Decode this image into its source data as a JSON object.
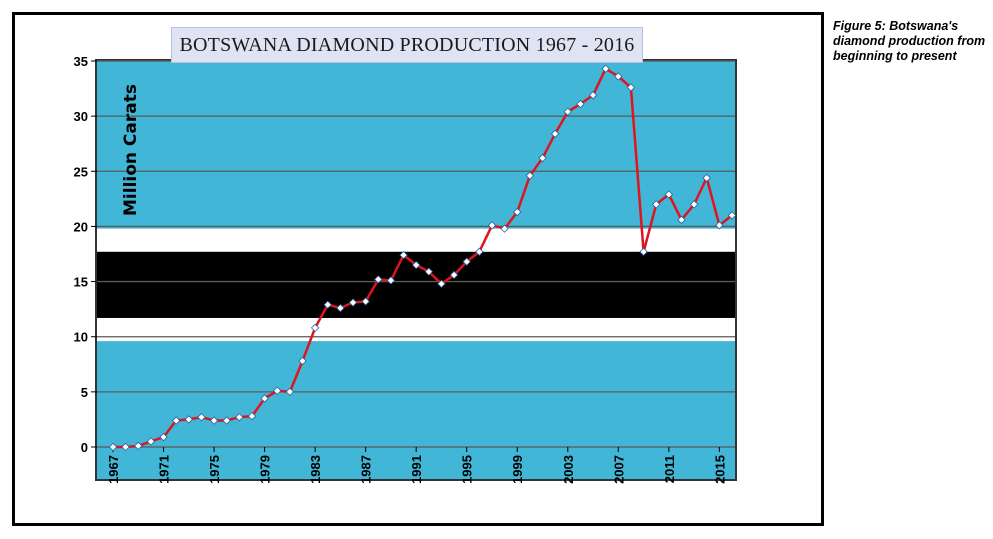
{
  "caption": "Figure 5: Botswana's diamond production from beginning to present",
  "colors": {
    "flag_blue": "#41b6d6",
    "flag_black": "#000000",
    "flag_white": "#ffffff",
    "line": "#e0141e",
    "marker": "#ffffff",
    "grid": "#5a5a5a"
  },
  "chart_data": {
    "type": "line",
    "title": "BOTSWANA DIAMOND PRODUCTION 1967 - 2016",
    "ylabel": "Million Carats",
    "xlabel": "",
    "ylim": [
      0,
      35
    ],
    "yticks": [
      "0",
      "5",
      "10",
      "15",
      "20",
      "25",
      "30",
      "35"
    ],
    "xticks": [
      "1967",
      "1971",
      "1975",
      "1979",
      "1983",
      "1987",
      "1991",
      "1995",
      "1999",
      "2003",
      "2007",
      "2011",
      "2015"
    ],
    "xlim": [
      1967,
      2016
    ],
    "grid": true,
    "legend": "none",
    "series": [
      {
        "x": [
          1967,
          1968,
          1969,
          1970,
          1971,
          1972,
          1973,
          1974,
          1975,
          1976,
          1977,
          1978,
          1979,
          1980,
          1981,
          1982,
          1983,
          1984,
          1985,
          1986,
          1987,
          1988,
          1989,
          1990,
          1991,
          1992,
          1993,
          1994,
          1995,
          1996,
          1997,
          1998,
          1999,
          2000,
          2001,
          2002,
          2003,
          2004,
          2005,
          2006,
          2007,
          2008,
          2009,
          2010,
          2011,
          2012,
          2013,
          2014,
          2015,
          2016
        ],
        "values": [
          0,
          0,
          0.1,
          0.5,
          0.9,
          2.4,
          2.5,
          2.7,
          2.4,
          2.4,
          2.7,
          2.8,
          4.4,
          5.1,
          5.0,
          7.8,
          10.8,
          12.9,
          12.6,
          13.1,
          13.2,
          15.2,
          15.1,
          17.4,
          16.5,
          15.9,
          14.8,
          15.6,
          16.8,
          17.7,
          20.1,
          19.8,
          21.3,
          24.6,
          26.2,
          28.4,
          30.4,
          31.1,
          31.9,
          34.3,
          33.6,
          32.6,
          17.7,
          22.0,
          22.9,
          20.6,
          22.0,
          24.4,
          20.1,
          21.0
        ]
      }
    ]
  }
}
